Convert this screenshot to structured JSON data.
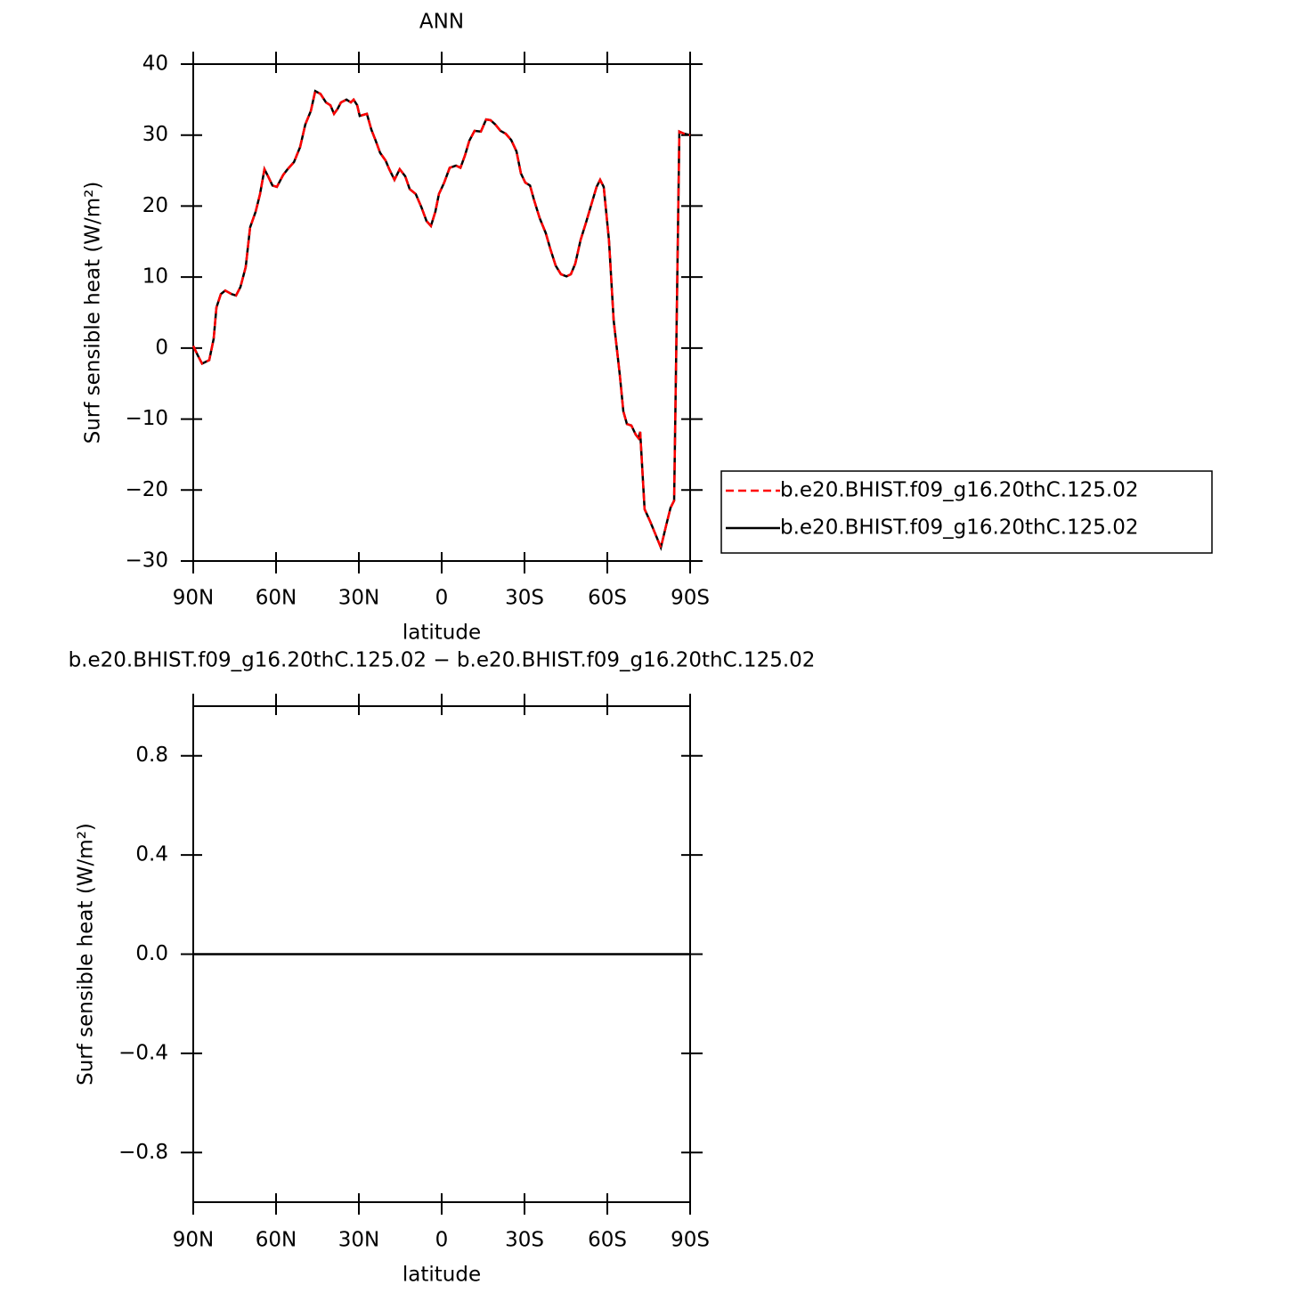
{
  "chart_data": [
    {
      "type": "line",
      "title": "ANN",
      "xlabel": "latitude",
      "ylabel": "Surf sensible heat (W/m²)",
      "x": [
        90,
        88.4,
        86.8,
        84.2,
        82.6,
        81.6,
        80,
        78.4,
        76.1,
        74.5,
        72.9,
        71,
        69.4,
        67.4,
        65.8,
        64.2,
        62.9,
        61.3,
        59.7,
        57.4,
        55.8,
        53.5,
        51.3,
        49.4,
        47.4,
        45.8,
        43.9,
        41.9,
        40.3,
        39,
        37.7,
        36.5,
        34.5,
        32.9,
        31.9,
        30.6,
        29.7,
        27.1,
        25.5,
        23.9,
        22.3,
        20.3,
        19,
        17.1,
        15.2,
        13.2,
        11.6,
        9.4,
        7.4,
        5.5,
        3.9,
        2.3,
        1,
        -0.9,
        -2.9,
        -5.2,
        -6.8,
        -8.4,
        -10,
        -11.9,
        -14.2,
        -16.1,
        -17.7,
        -19.4,
        -21.3,
        -23.2,
        -25.2,
        -27.1,
        -28.7,
        -30.3,
        -32,
        -33.5,
        -35.5,
        -37.7,
        -39.4,
        -41.3,
        -43.2,
        -45.2,
        -46.8,
        -48.4,
        -50.3,
        -52.3,
        -54.2,
        -56.1,
        -57.4,
        -58.7,
        -60.6,
        -62.3,
        -64.5,
        -65.8,
        -67.1,
        -68.7,
        -70.3,
        -71.3,
        -71.9,
        -73.5,
        -75.5,
        -77.4,
        -79.4,
        -81.3,
        -82.9,
        -84.2,
        -86.1,
        -87.8,
        -90
      ],
      "series": [
        {
          "name": "b.e20.BHIST.f09_g16.20thC.125.02",
          "color": "#ff0000",
          "linestyle": "dashed",
          "values": [
            0.3,
            -1,
            -2.2,
            -1.7,
            1.3,
            5.7,
            7.6,
            8.1,
            7.6,
            7.4,
            8.6,
            11.4,
            17,
            19.2,
            21.7,
            25.2,
            24.2,
            22.9,
            22.7,
            24.4,
            25.2,
            26.2,
            28.3,
            31.5,
            33.4,
            36.2,
            35.8,
            34.6,
            34.2,
            33,
            33.7,
            34.6,
            35,
            34.6,
            35,
            34.2,
            32.7,
            33,
            30.8,
            29.2,
            27.5,
            26.4,
            25.2,
            23.7,
            25.2,
            24.2,
            22.4,
            21.7,
            19.9,
            17.9,
            17.2,
            19.2,
            21.7,
            23.3,
            25.4,
            25.7,
            25.4,
            27.1,
            29.2,
            30.6,
            30.5,
            32.2,
            32.1,
            31.5,
            30.6,
            30.2,
            29.3,
            27.7,
            24.6,
            23.3,
            22.9,
            20.8,
            18.3,
            16.2,
            13.9,
            11.6,
            10.4,
            10.1,
            10.4,
            11.9,
            15.2,
            17.7,
            20.2,
            22.7,
            23.7,
            22.7,
            15.2,
            3.9,
            -3.7,
            -8.9,
            -10.7,
            -10.9,
            -12.2,
            -12.7,
            -11.8,
            -22.7,
            -24.4,
            -26.2,
            -28.1,
            -25,
            -22.5,
            -21.5,
            30.5,
            30.2,
            30
          ]
        },
        {
          "name": "b.e20.BHIST.f09_g16.20thC.125.02",
          "color": "#000000",
          "linestyle": "solid",
          "values": [
            0.3,
            -1,
            -2.2,
            -1.7,
            1.3,
            5.7,
            7.6,
            8.1,
            7.6,
            7.4,
            8.6,
            11.4,
            17,
            19.2,
            21.7,
            25.2,
            24.2,
            22.9,
            22.7,
            24.4,
            25.2,
            26.2,
            28.3,
            31.5,
            33.4,
            36.2,
            35.8,
            34.6,
            34.2,
            33,
            33.7,
            34.6,
            35,
            34.6,
            35,
            34.2,
            32.7,
            33,
            30.8,
            29.2,
            27.5,
            26.4,
            25.2,
            23.7,
            25.2,
            24.2,
            22.4,
            21.7,
            19.9,
            17.9,
            17.2,
            19.2,
            21.7,
            23.3,
            25.4,
            25.7,
            25.4,
            27.1,
            29.2,
            30.6,
            30.5,
            32.2,
            32.1,
            31.5,
            30.6,
            30.2,
            29.3,
            27.7,
            24.6,
            23.3,
            22.9,
            20.8,
            18.3,
            16.2,
            13.9,
            11.6,
            10.4,
            10.1,
            10.4,
            11.9,
            15.2,
            17.7,
            20.2,
            22.7,
            23.7,
            22.7,
            15.2,
            3.9,
            -3.7,
            -8.9,
            -10.7,
            -10.9,
            -12.2,
            -12.7,
            -11.8,
            -22.7,
            -24.4,
            -26.2,
            -28.1,
            -25,
            -22.5,
            -21.5,
            30.5,
            30.2,
            30
          ]
        }
      ],
      "xlim": [
        90,
        -90
      ],
      "ylim": [
        -30,
        40
      ],
      "xticks": [
        {
          "value": 90,
          "label": "90N"
        },
        {
          "value": 60,
          "label": "60N"
        },
        {
          "value": 30,
          "label": "30N"
        },
        0,
        {
          "value": -30,
          "label": "30S"
        },
        {
          "value": -60,
          "label": "60S"
        },
        {
          "value": -90,
          "label": "90S"
        }
      ],
      "yticks": [
        {
          "value": -30,
          "label": "−30"
        },
        {
          "value": -20,
          "label": "−20"
        },
        {
          "value": -10,
          "label": "−10"
        },
        0,
        10,
        20,
        30,
        40
      ],
      "legend": "right"
    },
    {
      "type": "line",
      "title": "b.e20.BHIST.f09_g16.20thC.125.02 − b.e20.BHIST.f09_g16.20thC.125.02",
      "xlabel": "latitude",
      "ylabel": "Surf sensible heat (W/m²)",
      "x": [
        90,
        -90
      ],
      "series": [
        {
          "color": "#000000",
          "linestyle": "solid",
          "values": [
            0,
            0
          ]
        }
      ],
      "xlim": [
        90,
        -90
      ],
      "ylim": [
        -1,
        1
      ],
      "xticks": [
        {
          "value": 90,
          "label": "90N"
        },
        {
          "value": 60,
          "label": "60N"
        },
        {
          "value": 30,
          "label": "30N"
        },
        0,
        {
          "value": -30,
          "label": "30S"
        },
        {
          "value": -60,
          "label": "60S"
        },
        {
          "value": -90,
          "label": "90S"
        }
      ],
      "yticks": [
        {
          "value": -0.8,
          "label": "−0.8"
        },
        {
          "value": -0.4,
          "label": "−0.4"
        },
        {
          "value": 0,
          "label": "0.0"
        },
        0.4,
        0.8
      ]
    }
  ]
}
